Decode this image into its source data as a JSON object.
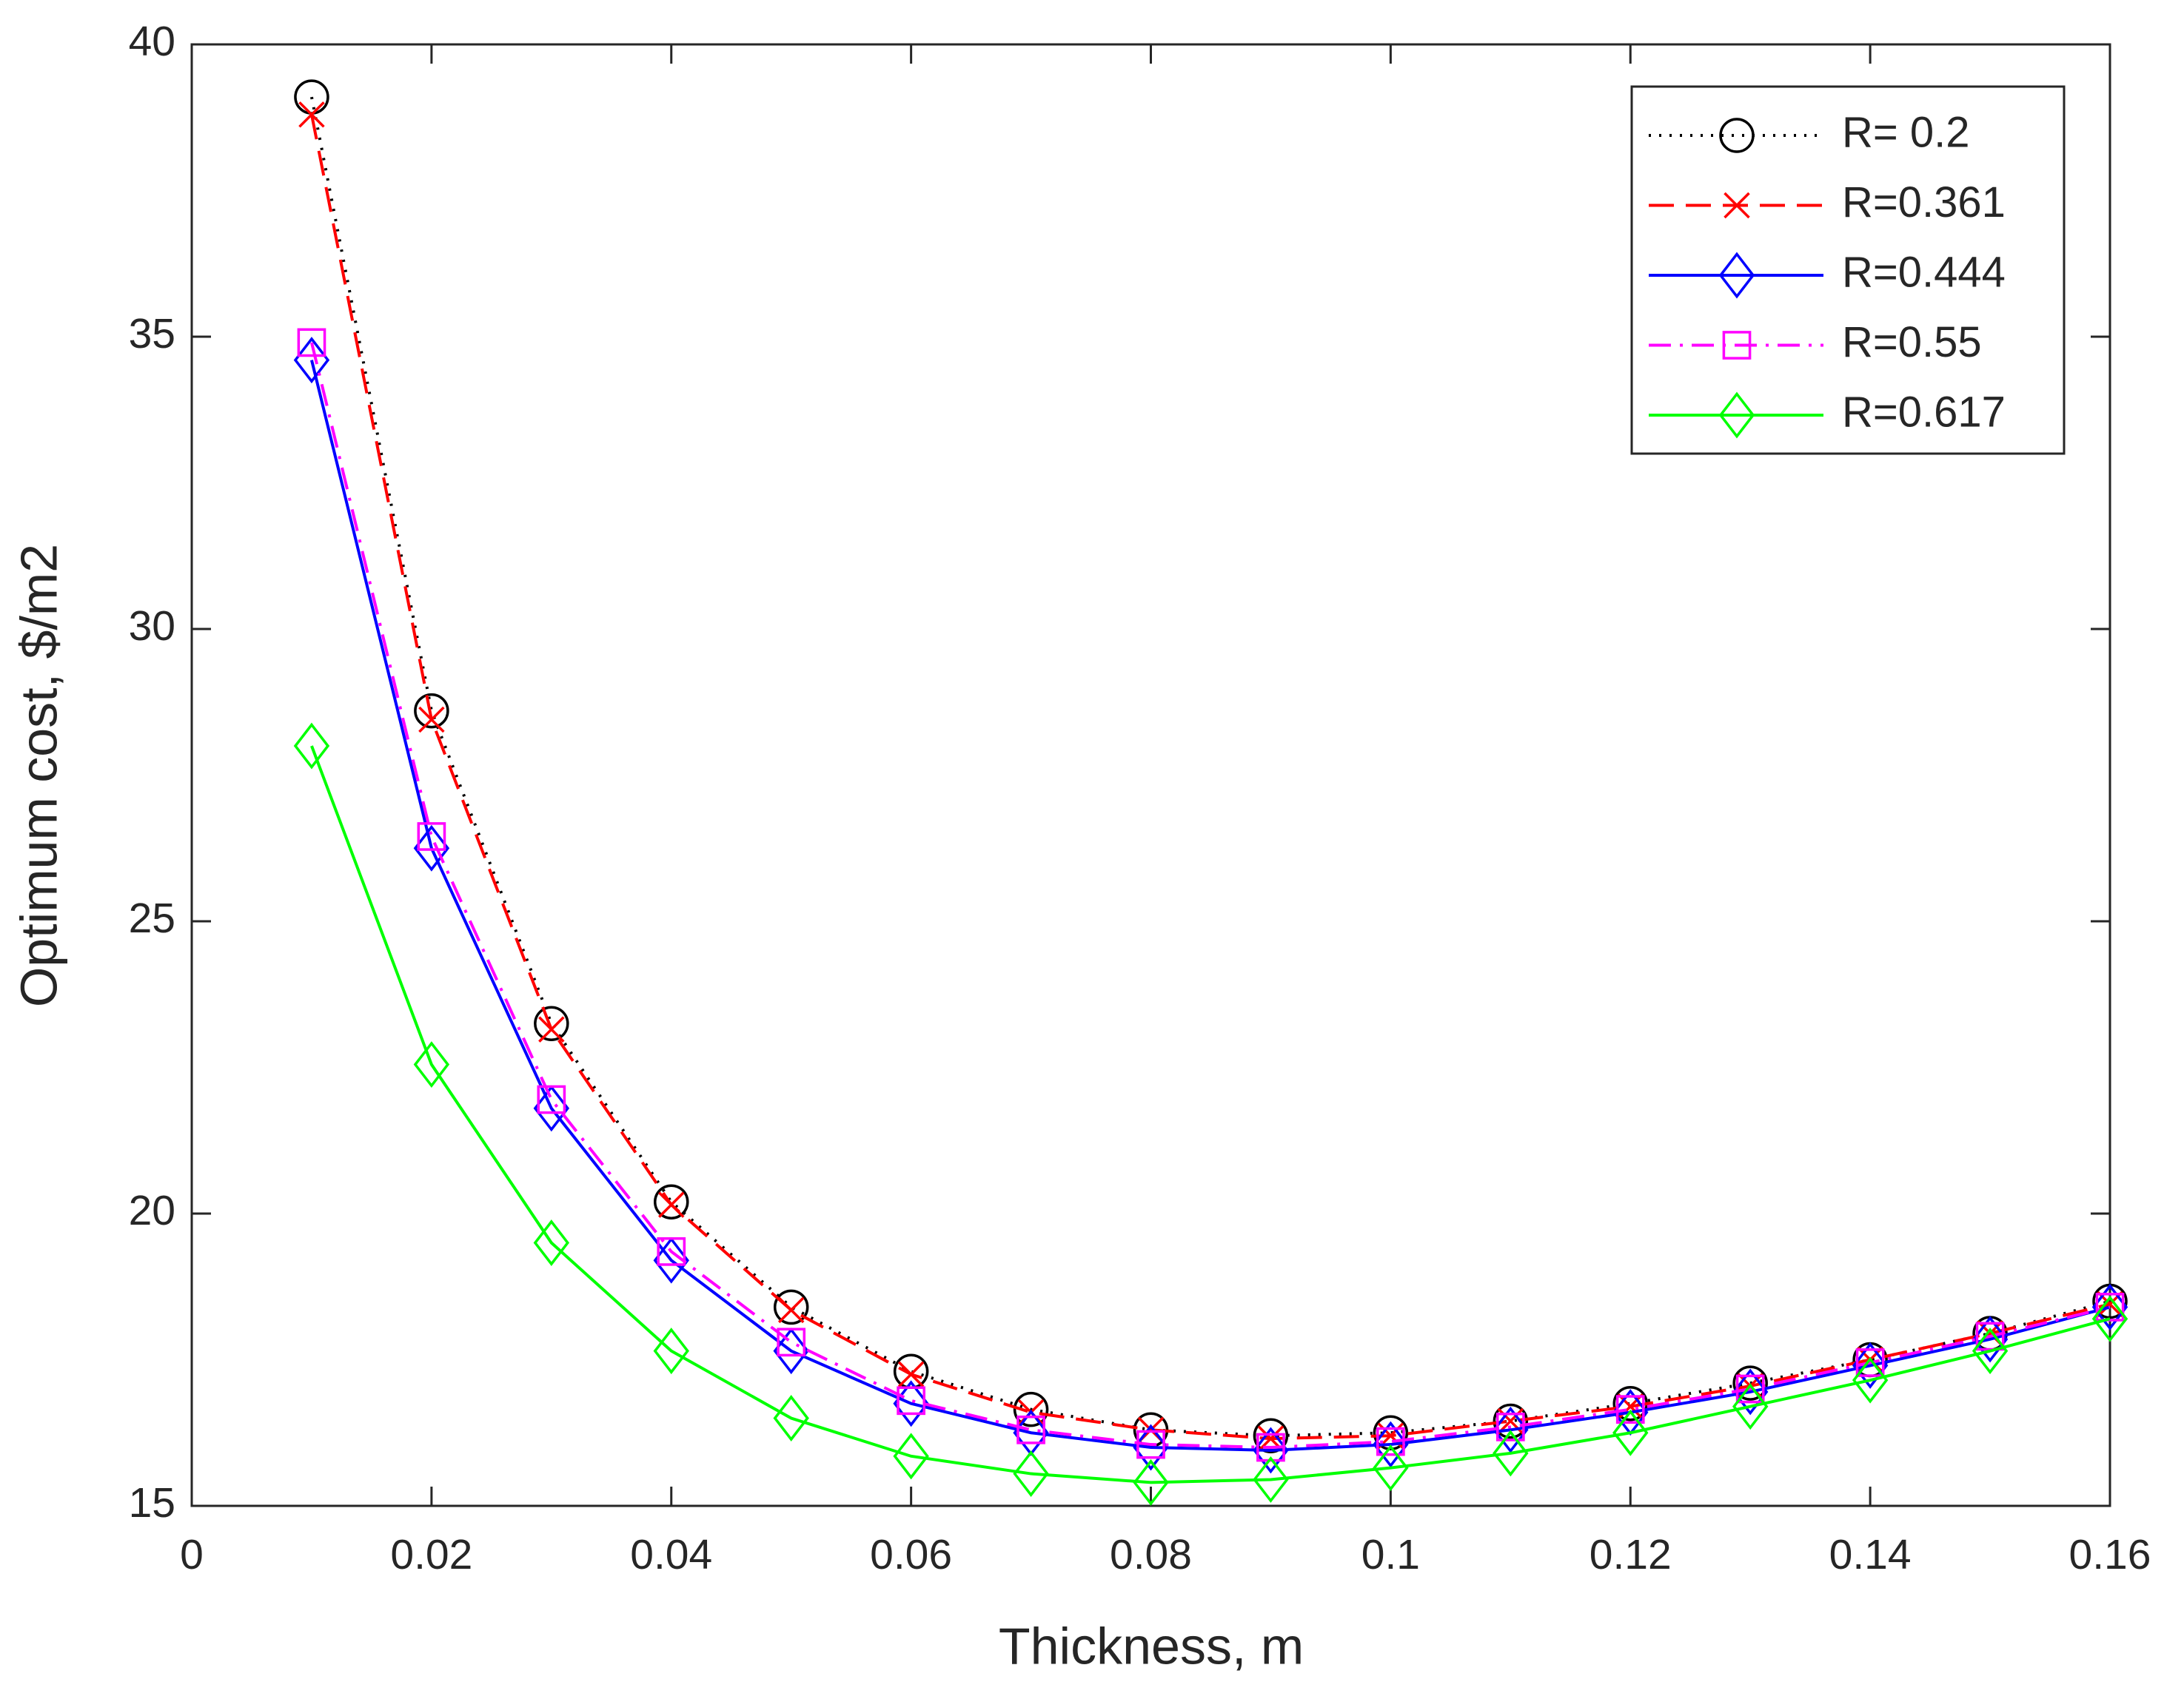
{
  "chart_data": {
    "type": "line",
    "xlabel": "Thickness, m",
    "ylabel": "Optimum cost, $/m2",
    "x": [
      0.01,
      0.02,
      0.03,
      0.04,
      0.05,
      0.06,
      0.07,
      0.08,
      0.09,
      0.1,
      0.11,
      0.12,
      0.13,
      0.14,
      0.15,
      0.16
    ],
    "series": [
      {
        "name": "R= 0.2",
        "color": "#000000",
        "line_style": "dotted",
        "marker": "circle",
        "values": [
          39.1,
          28.6,
          23.25,
          20.2,
          18.4,
          17.3,
          16.65,
          16.3,
          16.2,
          16.25,
          16.45,
          16.75,
          17.1,
          17.5,
          17.95,
          18.5
        ]
      },
      {
        "name": "R=0.361",
        "color": "#ff0000",
        "line_style": "dashed",
        "marker": "x",
        "values": [
          38.8,
          28.45,
          23.15,
          20.15,
          18.35,
          17.25,
          16.6,
          16.3,
          16.15,
          16.2,
          16.45,
          16.7,
          17.05,
          17.5,
          17.95,
          18.45
        ]
      },
      {
        "name": "R=0.444",
        "color": "#0000ff",
        "line_style": "solid",
        "marker": "diamond",
        "values": [
          34.6,
          26.25,
          21.8,
          19.2,
          17.65,
          16.75,
          16.25,
          16.0,
          15.95,
          16.05,
          16.3,
          16.6,
          16.95,
          17.4,
          17.85,
          18.4
        ]
      },
      {
        "name": "R=0.55",
        "color": "#ff00ff",
        "line_style": "dashdot",
        "marker": "square",
        "values": [
          34.9,
          26.45,
          21.95,
          19.35,
          17.8,
          16.8,
          16.3,
          16.05,
          16.0,
          16.1,
          16.35,
          16.65,
          17.0,
          17.45,
          17.9,
          18.4
        ]
      },
      {
        "name": "R=0.617",
        "color": "#00ff00",
        "line_style": "solid",
        "marker": "diamond",
        "values": [
          28.0,
          22.55,
          19.5,
          17.65,
          16.5,
          15.85,
          15.55,
          15.4,
          15.45,
          15.65,
          15.9,
          16.25,
          16.7,
          17.15,
          17.65,
          18.2
        ]
      }
    ],
    "xlim": [
      0,
      0.16
    ],
    "xticks": [
      0,
      0.02,
      0.04,
      0.06,
      0.08,
      0.1,
      0.12,
      0.14,
      0.16
    ],
    "ylim": [
      15,
      40
    ],
    "yticks": [
      15,
      20,
      25,
      30,
      35,
      40
    ],
    "legend": "upper right"
  }
}
